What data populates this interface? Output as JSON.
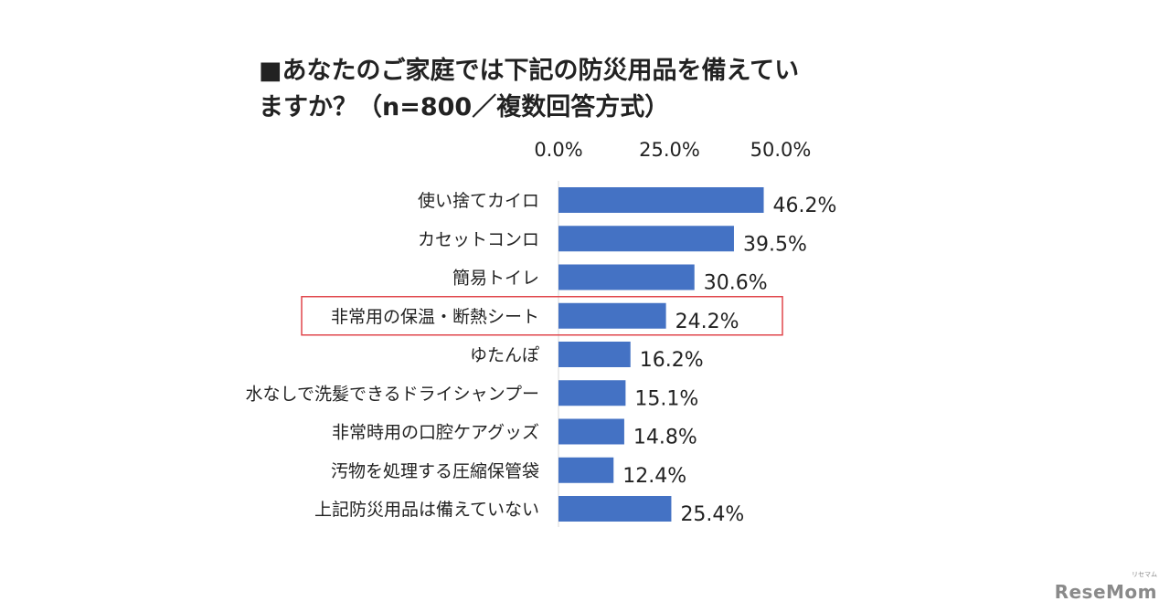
{
  "title_lines": [
    "■あなたのご家庭では下記の防災用品を備えてい",
    "ますか？（n=800／複数回答方式）"
  ],
  "chart_data": {
    "type": "bar",
    "orientation": "horizontal",
    "categories": [
      "使い捨てカイロ",
      "カセットコンロ",
      "簡易トイレ",
      "非常用の保温・断熱シート",
      "ゆたんぽ",
      "水なしで洗髪できるドライシャンプー",
      "非常時用の口腔ケアグッズ",
      "汚物を処理する圧縮保管袋",
      "上記防災用品は備えていない"
    ],
    "values": [
      46.2,
      39.5,
      30.6,
      24.2,
      16.2,
      15.1,
      14.8,
      12.4,
      25.4
    ],
    "value_labels": [
      "46.2%",
      "39.5%",
      "30.6%",
      "24.2%",
      "16.2%",
      "15.1%",
      "14.8%",
      "12.4%",
      "25.4%"
    ],
    "ticks": [
      0,
      25,
      50
    ],
    "tick_labels": [
      "0.0%",
      "25.0%",
      "50.0%"
    ],
    "xlim": [
      0,
      50
    ],
    "axis_position": "top",
    "grid": false,
    "highlighted_category": "非常用の保温・断熱シート",
    "bar_color": "#4472C4",
    "highlight_color": "#E0474C"
  },
  "logo": {
    "text": "ReseMom",
    "subtext": "リセマム"
  }
}
